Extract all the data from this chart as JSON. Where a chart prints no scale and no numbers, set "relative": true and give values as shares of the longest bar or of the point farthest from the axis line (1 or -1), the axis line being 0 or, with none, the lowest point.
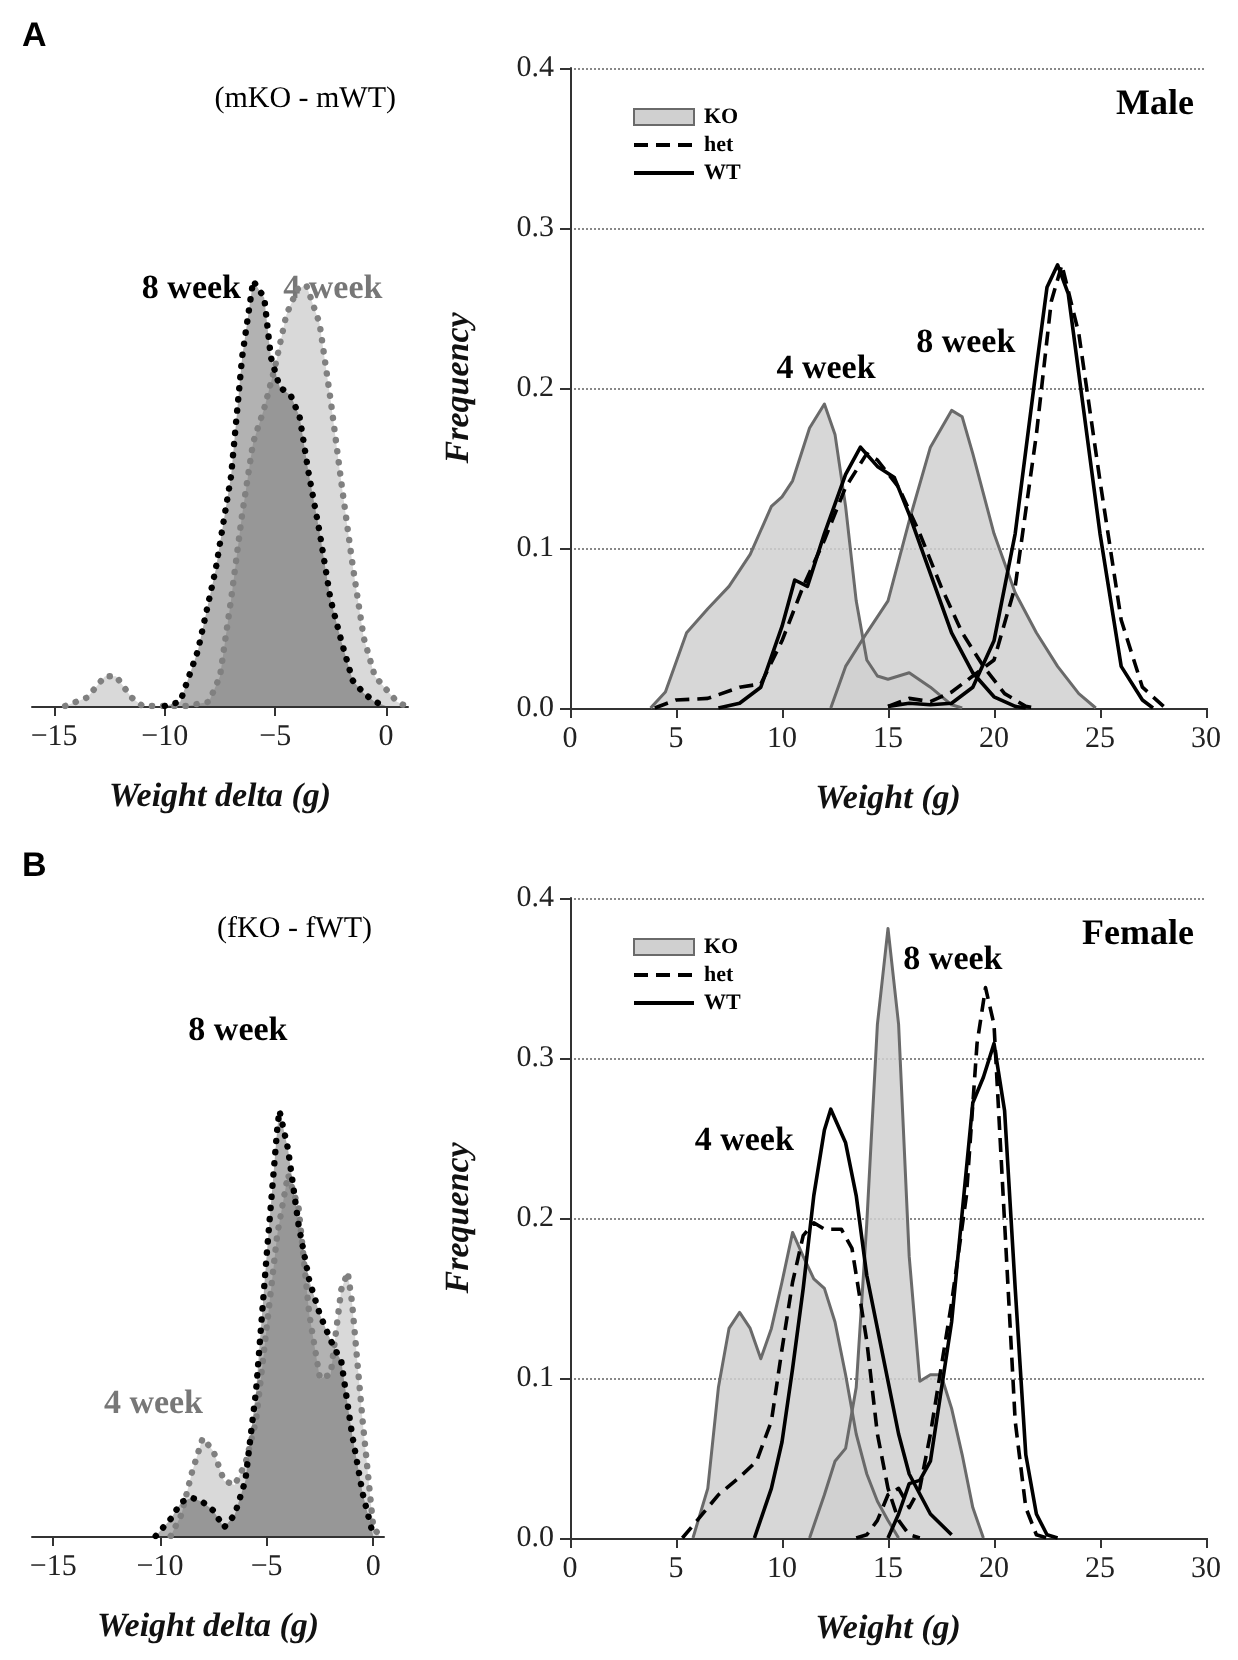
{
  "chart_data": [
    {
      "type": "area",
      "title": "A",
      "xlabel": "Weight delta (g)",
      "relative": true,
      "marker": "none",
      "line_style": "dotted",
      "xlim": [
        -16,
        1
      ],
      "xticks": [
        -15,
        -10,
        -5,
        0
      ],
      "annotations": [
        "(mKO - mWT)",
        "8 week",
        "4 week"
      ],
      "series": [
        {
          "color": "#808080",
          "x": [
            -14.5,
            -13.5,
            -12.7,
            -12.2,
            -11.5,
            -11,
            -9,
            -8,
            -7.5,
            -7,
            -6.5,
            -6,
            -5.5,
            -5,
            -4.5,
            -4,
            -3.6,
            -3,
            -2.5,
            -2,
            -1.5,
            -1,
            -0.5,
            0,
            0.5,
            0.9
          ],
          "values": [
            0,
            0.02,
            0.07,
            0.07,
            0.02,
            0,
            0,
            0.01,
            0.07,
            0.25,
            0.45,
            0.62,
            0.7,
            0.8,
            0.92,
            0.98,
            0.99,
            0.9,
            0.72,
            0.52,
            0.33,
            0.16,
            0.07,
            0.04,
            0.01,
            0
          ]
        },
        {
          "color": "#000000",
          "x": [
            -10,
            -9.3,
            -8.5,
            -7.7,
            -7,
            -6.5,
            -6,
            -5.5,
            -5.2,
            -4.8,
            -4.3,
            -3.9,
            -3.5,
            -3,
            -2.5,
            -2,
            -1.5,
            -1,
            -0.5,
            0
          ],
          "values": [
            0,
            0.01,
            0.13,
            0.32,
            0.54,
            0.82,
            1,
            0.96,
            0.82,
            0.75,
            0.73,
            0.68,
            0.55,
            0.41,
            0.25,
            0.15,
            0.06,
            0.03,
            0.01,
            0
          ]
        }
      ]
    },
    {
      "type": "line",
      "xlabel": "Weight (g)",
      "ylabel": "Frequency",
      "marker": "none",
      "grid": "y",
      "legend": "top left",
      "xlim": [
        0,
        30
      ],
      "xticks": [
        0,
        5,
        10,
        15,
        20,
        25,
        30
      ],
      "ylim": [
        0,
        0.4
      ],
      "yticks": [
        {
          "value": 0,
          "label": "0.0"
        },
        0.1,
        0.2,
        0.3,
        0.4
      ],
      "annotations": [
        "Male",
        "4 week",
        "8 week"
      ],
      "series": [
        {
          "name": "KO",
          "type": "area",
          "line_style": "solid",
          "color": "#d0d0d0",
          "x": [
            3.8,
            4.5,
            5.5,
            6.5,
            7.5,
            8.5,
            9.5,
            10,
            10.5,
            11.3,
            12,
            12.5,
            13,
            13.5,
            14,
            14.5,
            15,
            16,
            17,
            18,
            18.5
          ],
          "values": [
            0,
            0.01,
            0.047,
            0.062,
            0.076,
            0.096,
            0.126,
            0.132,
            0.142,
            0.175,
            0.19,
            0.171,
            0.126,
            0.067,
            0.03,
            0.02,
            0.018,
            0.022,
            0.013,
            0.002,
            0
          ]
        },
        {
          "type": "area",
          "line_style": "solid",
          "color": "#d0d0d0",
          "x": [
            12.3,
            13,
            14,
            15,
            16,
            17,
            18,
            18.5,
            19,
            20,
            21,
            22,
            23,
            24,
            24.8
          ],
          "values": [
            0,
            0.026,
            0.047,
            0.067,
            0.117,
            0.163,
            0.186,
            0.182,
            0.159,
            0.109,
            0.072,
            0.047,
            0.026,
            0.009,
            0
          ]
        },
        {
          "name": "het",
          "type": "line",
          "line_style": "dashed",
          "color": "#000000",
          "x": [
            4,
            5,
            6.5,
            8,
            9,
            10,
            11,
            12,
            13,
            14,
            14.5,
            15.5,
            16.5,
            17.5,
            18.5,
            19.5,
            20.5,
            21.5,
            22
          ],
          "values": [
            0,
            0.005,
            0.006,
            0.013,
            0.015,
            0.042,
            0.076,
            0.105,
            0.138,
            0.159,
            0.155,
            0.138,
            0.109,
            0.076,
            0.047,
            0.026,
            0.009,
            0.001,
            0
          ]
        },
        {
          "type": "line",
          "line_style": "dashed",
          "color": "#000000",
          "x": [
            15,
            16,
            17,
            18,
            19,
            19.5,
            20,
            21,
            22,
            22.7,
            23.2,
            24,
            25,
            26,
            27,
            28
          ],
          "values": [
            0.001,
            0.006,
            0.004,
            0.01,
            0.02,
            0.025,
            0.03,
            0.076,
            0.171,
            0.254,
            0.277,
            0.234,
            0.142,
            0.055,
            0.013,
            0.001
          ]
        },
        {
          "name": "WT",
          "type": "line",
          "line_style": "solid",
          "color": "#000000",
          "x": [
            7,
            8,
            9,
            10,
            10.6,
            11.2,
            12,
            13,
            13.7,
            14.5,
            15.3,
            16,
            17,
            18,
            19,
            20,
            21,
            21.5
          ],
          "values": [
            0,
            0.003,
            0.013,
            0.051,
            0.08,
            0.076,
            0.109,
            0.146,
            0.163,
            0.151,
            0.144,
            0.121,
            0.084,
            0.047,
            0.022,
            0.007,
            0.001,
            0
          ]
        },
        {
          "type": "line",
          "line_style": "solid",
          "color": "#000000",
          "x": [
            15,
            16,
            17,
            18,
            19,
            20,
            21,
            22,
            22.5,
            23,
            23.5,
            24,
            25,
            26,
            27,
            27.5
          ],
          "values": [
            0.001,
            0.003,
            0.002,
            0.003,
            0.013,
            0.042,
            0.109,
            0.213,
            0.263,
            0.277,
            0.259,
            0.209,
            0.109,
            0.026,
            0.005,
            0
          ]
        }
      ]
    },
    {
      "type": "area",
      "title": "B",
      "xlabel": "Weight delta (g)",
      "relative": true,
      "marker": "none",
      "line_style": "dotted",
      "xlim": [
        -16,
        0.5
      ],
      "xticks": [
        -15,
        -10,
        -5,
        0
      ],
      "annotations": [
        "(fKO - fWT)",
        "8 week",
        "4 week"
      ],
      "series": [
        {
          "color": "#808080",
          "x": [
            -9.5,
            -9,
            -8.5,
            -8,
            -7.5,
            -7,
            -6.5,
            -6,
            -5.5,
            -5,
            -4.5,
            -4,
            -3.5,
            -3,
            -2.5,
            -2,
            -1.5,
            -1.2,
            -1,
            -0.5,
            0,
            0.3
          ],
          "values": [
            0,
            0.05,
            0.15,
            0.23,
            0.2,
            0.13,
            0.12,
            0.17,
            0.27,
            0.49,
            0.71,
            0.85,
            0.77,
            0.52,
            0.37,
            0.38,
            0.58,
            0.62,
            0.55,
            0.27,
            0.02,
            0
          ]
        },
        {
          "color": "#000000",
          "x": [
            -10.2,
            -9.5,
            -9,
            -8.5,
            -8,
            -7.5,
            -7,
            -6.5,
            -6,
            -5.5,
            -5,
            -4.5,
            -4.4,
            -4,
            -3.5,
            -3,
            -2.5,
            -2,
            -1.5,
            -1,
            -0.5,
            0
          ],
          "values": [
            0,
            0.04,
            0.08,
            0.09,
            0.08,
            0.06,
            0.02,
            0.05,
            0.13,
            0.34,
            0.66,
            0.96,
            1,
            0.91,
            0.73,
            0.6,
            0.52,
            0.46,
            0.41,
            0.24,
            0.1,
            0
          ]
        }
      ]
    },
    {
      "type": "line",
      "xlabel": "Weight (g)",
      "ylabel": "Frequency",
      "marker": "none",
      "grid": "y",
      "legend": "top left",
      "xlim": [
        0,
        30
      ],
      "xticks": [
        0,
        5,
        10,
        15,
        20,
        25,
        30
      ],
      "ylim": [
        0,
        0.4
      ],
      "yticks": [
        {
          "value": 0,
          "label": "0.0"
        },
        0.1,
        0.2,
        0.3,
        0.4
      ],
      "annotations": [
        "Female",
        "4 week",
        "8 week"
      ],
      "series": [
        {
          "name": "KO",
          "type": "area",
          "line_style": "solid",
          "color": "#d0d0d0",
          "x": [
            5.8,
            6.5,
            7,
            7.5,
            8,
            8.5,
            9,
            9.5,
            10,
            10.5,
            11,
            11.5,
            12,
            12.5,
            13,
            13.5,
            14,
            14.5,
            15,
            15.5
          ],
          "values": [
            0,
            0.031,
            0.094,
            0.131,
            0.141,
            0.131,
            0.112,
            0.131,
            0.16,
            0.191,
            0.176,
            0.162,
            0.156,
            0.135,
            0.102,
            0.065,
            0.04,
            0.023,
            0.011,
            0
          ]
        },
        {
          "type": "area",
          "line_style": "solid",
          "color": "#d0d0d0",
          "x": [
            11.3,
            12,
            12.5,
            13,
            13.5,
            14,
            14.5,
            15,
            15.5,
            16,
            16.5,
            17,
            17.5,
            18,
            18.5,
            19,
            19.5
          ],
          "values": [
            0,
            0.027,
            0.048,
            0.056,
            0.094,
            0.197,
            0.321,
            0.381,
            0.321,
            0.176,
            0.098,
            0.102,
            0.102,
            0.081,
            0.052,
            0.019,
            0
          ]
        },
        {
          "name": "het",
          "type": "line",
          "line_style": "dashed",
          "color": "#000000",
          "x": [
            5.3,
            6,
            7,
            8,
            8.8,
            9.5,
            10,
            10.5,
            11,
            11.5,
            12,
            12.8,
            13.3,
            14,
            14.5,
            15,
            15.5,
            16,
            16.5
          ],
          "values": [
            0,
            0.011,
            0.027,
            0.038,
            0.048,
            0.073,
            0.118,
            0.16,
            0.189,
            0.197,
            0.193,
            0.193,
            0.181,
            0.123,
            0.065,
            0.031,
            0.011,
            0.002,
            0
          ]
        },
        {
          "type": "line",
          "line_style": "dashed",
          "color": "#000000",
          "x": [
            13.5,
            14,
            14.5,
            15,
            15.5,
            16,
            16.5,
            17,
            18,
            18.7,
            19.2,
            19.6,
            20,
            20.5,
            21,
            21.5,
            22,
            22.5
          ],
          "values": [
            0,
            0.002,
            0.011,
            0.027,
            0.031,
            0.019,
            0.031,
            0.065,
            0.147,
            0.214,
            0.309,
            0.344,
            0.321,
            0.197,
            0.073,
            0.019,
            0.002,
            0
          ]
        },
        {
          "name": "WT",
          "type": "line",
          "line_style": "solid",
          "color": "#000000",
          "x": [
            8.7,
            9.5,
            10,
            10.5,
            11,
            11.5,
            12,
            12.3,
            13,
            13.5,
            14,
            14.5,
            15,
            15.5,
            16,
            17,
            18
          ],
          "values": [
            0,
            0.031,
            0.06,
            0.106,
            0.156,
            0.214,
            0.255,
            0.268,
            0.247,
            0.214,
            0.164,
            0.131,
            0.098,
            0.065,
            0.04,
            0.015,
            0.002
          ]
        },
        {
          "type": "line",
          "line_style": "solid",
          "color": "#000000",
          "x": [
            15,
            15.5,
            16,
            16.5,
            17,
            18,
            19,
            19.5,
            20,
            20.5,
            21,
            21.5,
            22,
            22.5,
            23
          ],
          "values": [
            0,
            0.015,
            0.034,
            0.036,
            0.048,
            0.135,
            0.272,
            0.288,
            0.309,
            0.267,
            0.156,
            0.052,
            0.015,
            0.002,
            0
          ]
        }
      ]
    }
  ]
}
